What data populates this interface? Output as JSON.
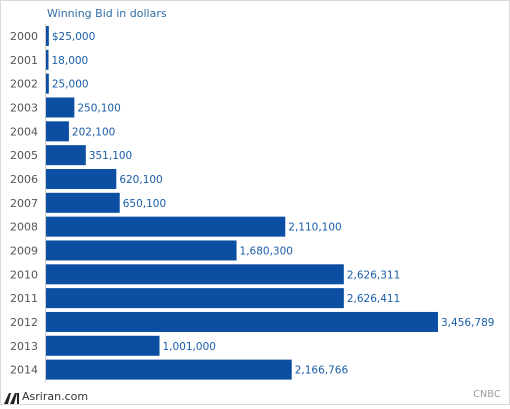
{
  "source": "CNBC",
  "logo_text": "Asriran.com",
  "colors": {
    "bar": "#0b4ea2",
    "value_text": "#1a5ea8",
    "title": "#2e6da4"
  },
  "chart_data": {
    "type": "bar",
    "orientation": "horizontal",
    "title": "Winning Bid in dollars",
    "categories": [
      "2000",
      "2001",
      "2002",
      "2003",
      "2004",
      "2005",
      "2006",
      "2007",
      "2008",
      "2009",
      "2010",
      "2011",
      "2012",
      "2013",
      "2014"
    ],
    "values": [
      25000,
      18000,
      25000,
      250100,
      202100,
      351100,
      620100,
      650100,
      2110100,
      1680300,
      2626311,
      2626411,
      3456789,
      1001000,
      2166766
    ],
    "value_labels": [
      "$25,000",
      "18,000",
      "25,000",
      "250,100",
      "202,100",
      "351,100",
      "620,100",
      "650,100",
      "2,110,100",
      "1,680,300",
      "2,626,311",
      "2,626,411",
      "3,456,789",
      "1,001,000",
      "2,166,766"
    ],
    "xlim": [
      0,
      3456789
    ],
    "grid": false,
    "legend": "none"
  }
}
